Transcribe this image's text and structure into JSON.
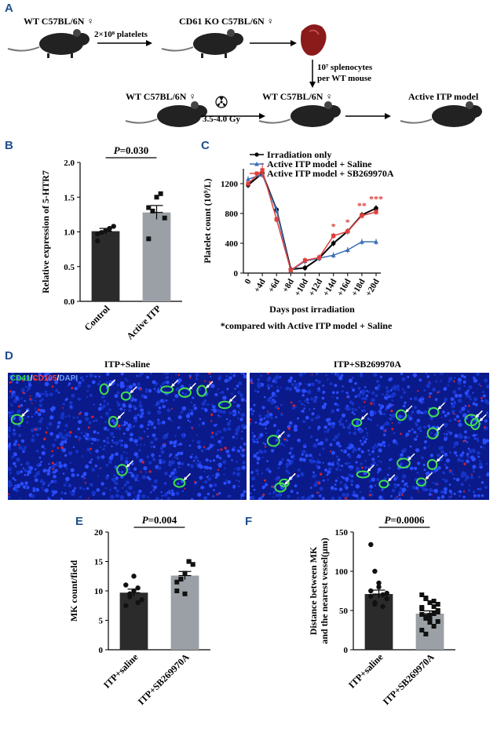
{
  "panels": {
    "A": "A",
    "B": "B",
    "C": "C",
    "D": "D",
    "E": "E",
    "F": "F"
  },
  "scheme": {
    "donor_label": "WT  C57BL/6N ♀",
    "transfer_label": "2×10⁸ platelets",
    "recipient_label": "CD61 KO  C57BL/6N ♀",
    "splenocytes_line1": "10⁷ splenocytes",
    "splenocytes_line2": "per WT mouse",
    "irradiated_donor_label": "WT  C57BL/6N ♀",
    "dose_label": "3.5-4.0 Gy",
    "final_recipient_label": "WT  C57BL/6N ♀",
    "model_label": "Active ITP model"
  },
  "panelB": {
    "p_value": "P=0.030",
    "chart_data": {
      "type": "bar",
      "categories": [
        "Control",
        "Active ITP"
      ],
      "values": [
        1.01,
        1.28
      ],
      "errors": [
        0.04,
        0.1
      ],
      "points": [
        [
          0.87,
          0.99,
          1.02,
          1.05,
          1.08,
          0.97
        ],
        [
          0.9,
          1.3,
          1.5,
          1.55,
          1.2,
          1.35
        ]
      ],
      "ylabel": "Relative expression of 5-HTR7",
      "ylim": [
        0.0,
        2.0
      ],
      "yticks": [
        "0.0",
        "0.5",
        "1.0",
        "1.5",
        "2.0"
      ],
      "colors": [
        "#2b2b2b",
        "#9aa0a6"
      ]
    }
  },
  "panelC": {
    "legend": [
      "Irradiation only",
      "Active ITP model + Saline",
      "Active ITP model + SB269970A"
    ],
    "footnote": "*compared with Active  ITP model + Saline",
    "chart_data": {
      "type": "line",
      "categories": [
        "0",
        "+4d",
        "+6d",
        "+8d",
        "+10d",
        "+12d",
        "+14d",
        "+16d",
        "+18d",
        "+20d"
      ],
      "series": [
        {
          "name": "Irradiation only",
          "values": [
            1180,
            1340,
            850,
            50,
            70,
            200,
            400,
            560,
            780,
            870
          ],
          "color": "#000000"
        },
        {
          "name": "Active ITP model + Saline",
          "values": [
            1260,
            1320,
            840,
            30,
            160,
            200,
            240,
            310,
            420,
            420
          ],
          "color": "#3b6fb6"
        },
        {
          "name": "Active ITP model + SB269970A",
          "values": [
            1200,
            1380,
            720,
            40,
            170,
            210,
            500,
            560,
            770,
            820
          ],
          "color": "#e0403d"
        }
      ],
      "stars": [
        "*",
        "*",
        "**",
        "***"
      ],
      "ylabel": "Platelet count (10⁹/L)",
      "xlabel": "Days post irradiation",
      "ylim": [
        0,
        1400
      ],
      "yticks": [
        "0",
        "400",
        "800",
        "1200"
      ]
    }
  },
  "panelD": {
    "stain_cd41": "CD41",
    "stain_cd105": "CD105",
    "stain_dapi": "DAPI",
    "left_title": "ITP+Saline",
    "right_title": "ITP+SB269970A"
  },
  "panelE": {
    "p_value": "P=0.004",
    "chart_data": {
      "type": "bar",
      "categories": [
        "ITP+saline",
        "ITP+SB269970A"
      ],
      "values": [
        9.7,
        12.6
      ],
      "errors": [
        0.6,
        0.7
      ],
      "points": [
        [
          7.5,
          9,
          10,
          10.5,
          8.5,
          11,
          9.5,
          12.5,
          8
        ],
        [
          10,
          12,
          13,
          15,
          14.5,
          11.5,
          12,
          9.5,
          15
        ]
      ],
      "ylabel": "MK count/field",
      "ylim": [
        0,
        20
      ],
      "yticks": [
        "0",
        "5",
        "10",
        "15",
        "20"
      ],
      "colors": [
        "#2b2b2b",
        "#9aa0a6"
      ]
    }
  },
  "panelF": {
    "p_value": "P=0.0006",
    "chart_data": {
      "type": "bar",
      "categories": [
        "ITP+saline",
        "ITP+SB269970A"
      ],
      "values": [
        71,
        46
      ],
      "errors": [
        5,
        3.5
      ],
      "points": [
        [
          134,
          100,
          80,
          70,
          65,
          75,
          60,
          85,
          55,
          72,
          68,
          58
        ],
        [
          70,
          65,
          60,
          55,
          50,
          45,
          40,
          35,
          30,
          48,
          52,
          42,
          38,
          62,
          58,
          25,
          20,
          44,
          46,
          36,
          54,
          66
        ]
      ],
      "ylabel": "Distance between MK\nand the nearest vessel(μm)",
      "ylim": [
        0,
        150
      ],
      "yticks": [
        "0",
        "50",
        "100",
        "150"
      ],
      "colors": [
        "#2b2b2b",
        "#9aa0a6"
      ]
    }
  }
}
